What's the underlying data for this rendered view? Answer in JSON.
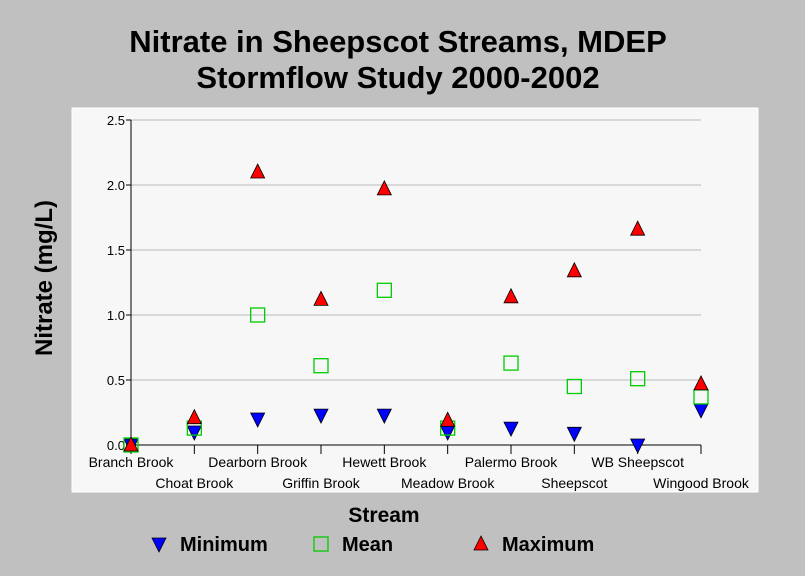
{
  "chart_data": {
    "type": "scatter",
    "title_lines": [
      "Nitrate in Sheepscot Streams, MDEP",
      "Stormflow Study 2000-2002"
    ],
    "xlabel": "Stream",
    "ylabel": "Nitrate (mg/L)",
    "categories": [
      "Branch Brook",
      "Choat Brook",
      "Dearborn Brook",
      "Griffin Brook",
      "Hewett Brook",
      "Meadow Brook",
      "Palermo Brook",
      "Sheepscot",
      "WB Sheepscot",
      "Wingood Brook"
    ],
    "ylim": [
      0,
      2.5
    ],
    "yticks": [
      "0.0",
      "0.5",
      "1.0",
      "1.5",
      "2.0",
      "2.5"
    ],
    "ytick_values": [
      0,
      0.5,
      1.0,
      1.5,
      2.0,
      2.5
    ],
    "grid": true,
    "legend_position": "bottom",
    "series": [
      {
        "name": "Minimum",
        "marker": "triangle-down",
        "color": "#0000ff",
        "values": [
          0.0,
          0.1,
          0.2,
          0.23,
          0.23,
          0.1,
          0.13,
          0.09,
          0.0,
          0.27
        ]
      },
      {
        "name": "Mean",
        "marker": "square-open",
        "color": "#00cc00",
        "values": [
          0.0,
          0.13,
          1.0,
          0.61,
          1.19,
          0.13,
          0.63,
          0.45,
          0.51,
          0.37
        ]
      },
      {
        "name": "Maximum",
        "marker": "triangle-up",
        "color": "#ff0000",
        "values": [
          0.0,
          0.21,
          2.1,
          1.12,
          1.97,
          0.19,
          1.14,
          1.34,
          1.66,
          0.47
        ]
      }
    ]
  }
}
